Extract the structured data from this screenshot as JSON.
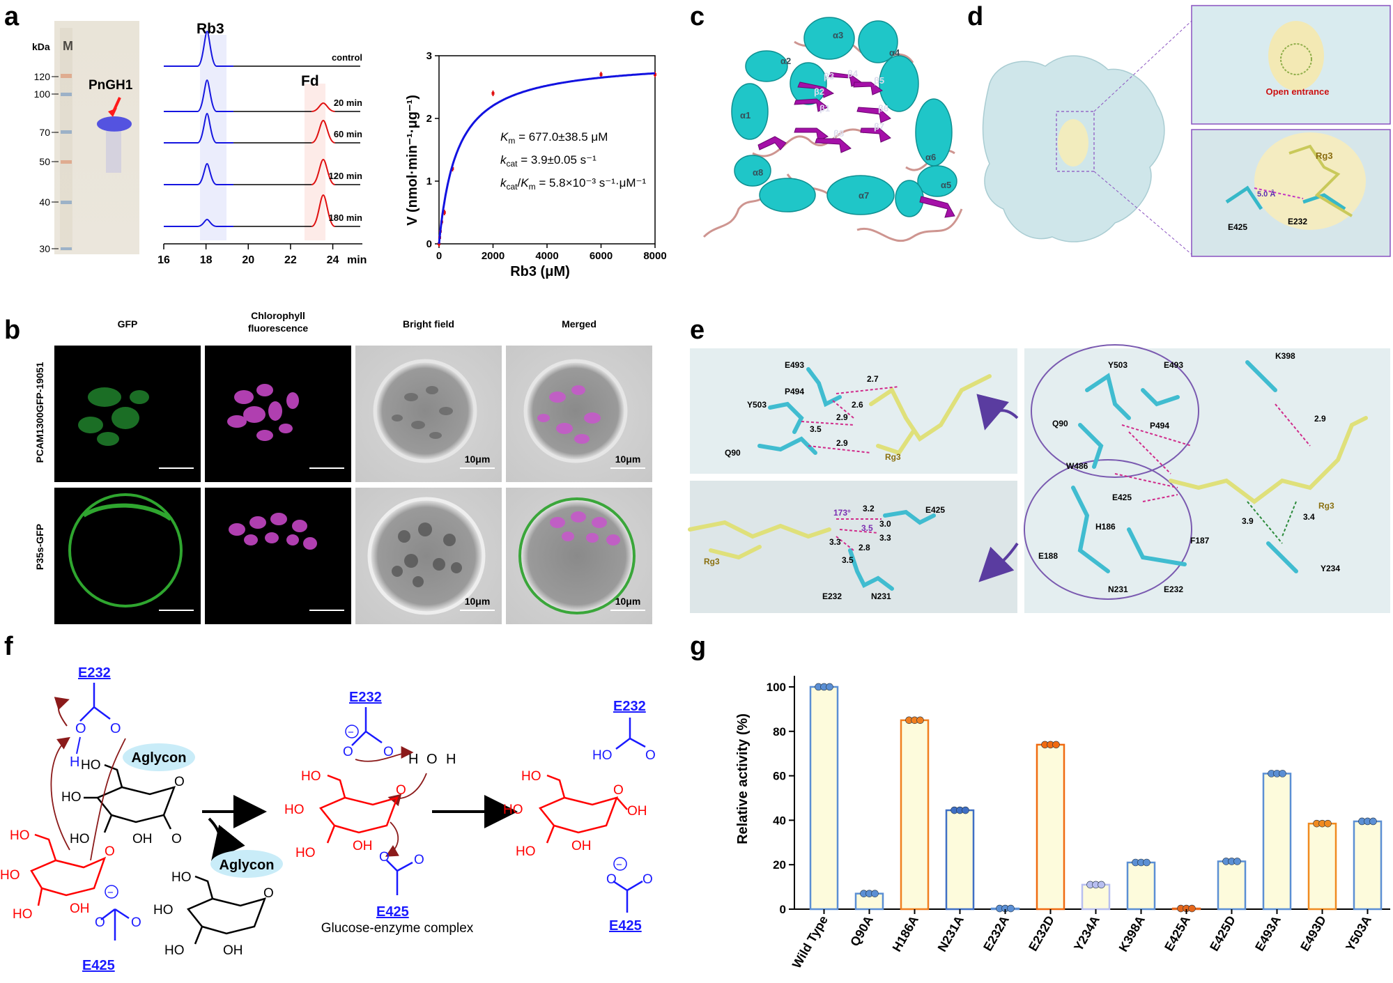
{
  "panels": {
    "a": "a",
    "b": "b",
    "c": "c",
    "d": "d",
    "e": "e",
    "f": "f",
    "g": "g"
  },
  "gel": {
    "kda_label": "kDa",
    "marker_label": "M",
    "protein_label": "PnGH1",
    "markers": [
      "120",
      "100",
      "70",
      "50",
      "40",
      "30"
    ]
  },
  "hplc": {
    "peak1": "Rb3",
    "peak2": "Fd",
    "traces": [
      "control",
      "20 min",
      "60 min",
      "120 min",
      "180 min"
    ],
    "xticks": [
      "16",
      "18",
      "20",
      "22",
      "24"
    ],
    "xunit": "min"
  },
  "chart_data": {
    "type": "scatter",
    "x": [
      0,
      25,
      50,
      100,
      200,
      500,
      2000,
      6000,
      8000
    ],
    "y": [
      0.0,
      0.1,
      0.2,
      0.35,
      0.5,
      1.2,
      2.4,
      2.7,
      2.7
    ],
    "xlabel": "Rb3 (μM)",
    "ylabel": "V (nmol·min⁻¹·μg⁻¹)",
    "xlim": [
      0,
      8000
    ],
    "ylim": [
      0,
      3
    ],
    "xticks": [
      "0",
      "2000",
      "4000",
      "6000",
      "8000"
    ],
    "yticks": [
      "0",
      "1",
      "2",
      "3"
    ],
    "fit": {
      "vmax": 2.95,
      "km": 677.0
    },
    "km_text": "= 677.0±38.5 μM",
    "kcat_text": "= 3.9±0.05 s⁻¹",
    "ratio_text": "= 5.8×10⁻³ s⁻¹·μM⁻¹"
  },
  "micro": {
    "cols": [
      "GFP",
      "Chlorophyll fluorescence",
      "Bright field",
      "Merged"
    ],
    "rows": [
      "PCAM1300GFP-19051",
      "P35s-GFP"
    ],
    "scale": "10μm"
  },
  "structure_c": {
    "helices": [
      "α1",
      "α2",
      "α3",
      "α4",
      "α5",
      "α6",
      "α7",
      "α8"
    ],
    "strands": [
      "β1",
      "β2",
      "β3",
      "β4",
      "β5",
      "β6",
      "β7",
      "β8"
    ]
  },
  "surface_d": {
    "entrance": "Open entrance",
    "ligand": "Rg3",
    "distance": "5.0 Å",
    "res1": "E425",
    "res2": "E232"
  },
  "interactions_e": {
    "top": {
      "residues": [
        "E493",
        "P494",
        "Y503",
        "Q90"
      ],
      "ligand": "Rg3",
      "dists": [
        "2.7",
        "2.6",
        "2.9",
        "3.5",
        "2.9"
      ]
    },
    "bottom": {
      "residues": [
        "E425",
        "E232",
        "N231"
      ],
      "ligand": "Rg3",
      "angle": "173°",
      "dists": [
        "3.2",
        "3.0",
        "3.5",
        "3.3",
        "3.3",
        "2.8",
        "3.5"
      ]
    },
    "right": {
      "residues": [
        "Y503",
        "E493",
        "K398",
        "Q90",
        "P494",
        "W486",
        "E425",
        "H186",
        "F187",
        "E188",
        "N231",
        "E232",
        "Y234"
      ],
      "ligand": "Rg3",
      "dists": [
        "2.9",
        "3.9",
        "3.4"
      ]
    }
  },
  "mechanism_f": {
    "e232": "E232",
    "e425": "E425",
    "aglycon": "Aglycon",
    "complex": "Glucose-enzyme complex"
  },
  "bar_g": {
    "ylabel": "Relative activity (%)",
    "yticks": [
      "0",
      "20",
      "40",
      "60",
      "80",
      "100"
    ],
    "categories": [
      "Wild Type",
      "Q90A",
      "H186A",
      "N231A",
      "E232A",
      "E232D",
      "Y234A",
      "K398A",
      "E425A",
      "E425D",
      "E493A",
      "E493D",
      "Y503A"
    ],
    "values": [
      100,
      7,
      85,
      44.5,
      0.3,
      74,
      11,
      21,
      0.3,
      21.5,
      61,
      38.5,
      39.5
    ],
    "colors": [
      "#5b8fd4",
      "#5b8fd4",
      "#f07f1f",
      "#3f6fc4",
      "#5b8fd4",
      "#f06a10",
      "#b8bff0",
      "#5b8fd4",
      "#e5661a",
      "#5b8fd4",
      "#5b8fd4",
      "#f08a20",
      "#5b8fd4"
    ]
  }
}
